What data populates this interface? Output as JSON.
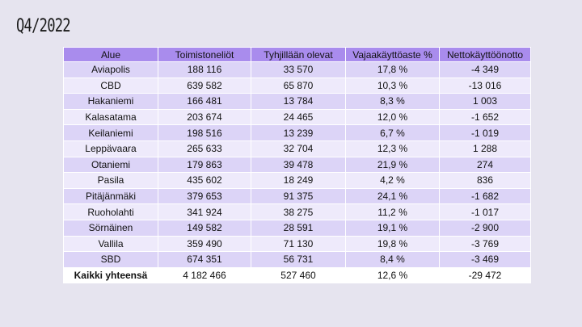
{
  "title": "Q4/2022",
  "table": {
    "headers": [
      "Alue",
      "Toimistoneliöt",
      "Tyhjillään olevat",
      "Vajaakäyttöaste %",
      "Nettokäyttöönotto"
    ],
    "rows": [
      [
        "Aviapolis",
        "188 116",
        "33 570",
        "17,8 %",
        "-4 349"
      ],
      [
        "CBD",
        "639 582",
        "65 870",
        "10,3 %",
        "-13 016"
      ],
      [
        "Hakaniemi",
        "166 481",
        "13 784",
        "8,3 %",
        "1 003"
      ],
      [
        "Kalasatama",
        "203 674",
        "24 465",
        "12,0 %",
        "-1 652"
      ],
      [
        "Keilaniemi",
        "198 516",
        "13 239",
        "6,7 %",
        "-1 019"
      ],
      [
        "Leppävaara",
        "265 633",
        "32 704",
        "12,3 %",
        "1 288"
      ],
      [
        "Otaniemi",
        "179 863",
        "39 478",
        "21,9 %",
        "274"
      ],
      [
        "Pasila",
        "435 602",
        "18 249",
        "4,2 %",
        "836"
      ],
      [
        "Pitäjänmäki",
        "379 653",
        "91 375",
        "24,1 %",
        "-1 682"
      ],
      [
        "Ruoholahti",
        "341 924",
        "38 275",
        "11,2 %",
        "-1 017"
      ],
      [
        "Sörnäinen",
        "149 582",
        "28 591",
        "19,1 %",
        "-2 900"
      ],
      [
        "Vallila",
        "359 490",
        "71 130",
        "19,8 %",
        "-3 769"
      ],
      [
        "SBD",
        "674 351",
        "56 731",
        "8,4 %",
        "-3 469"
      ]
    ],
    "total": [
      "Kaikki yhteensä",
      "4 182 466",
      "527 460",
      "12,6 %",
      "-29 472"
    ]
  },
  "colors": {
    "background": "#e6e4ef",
    "header": "#a98ced",
    "row_odd": "#dcd4f7",
    "row_even": "#eeeafb",
    "total_row": "#ffffff"
  }
}
